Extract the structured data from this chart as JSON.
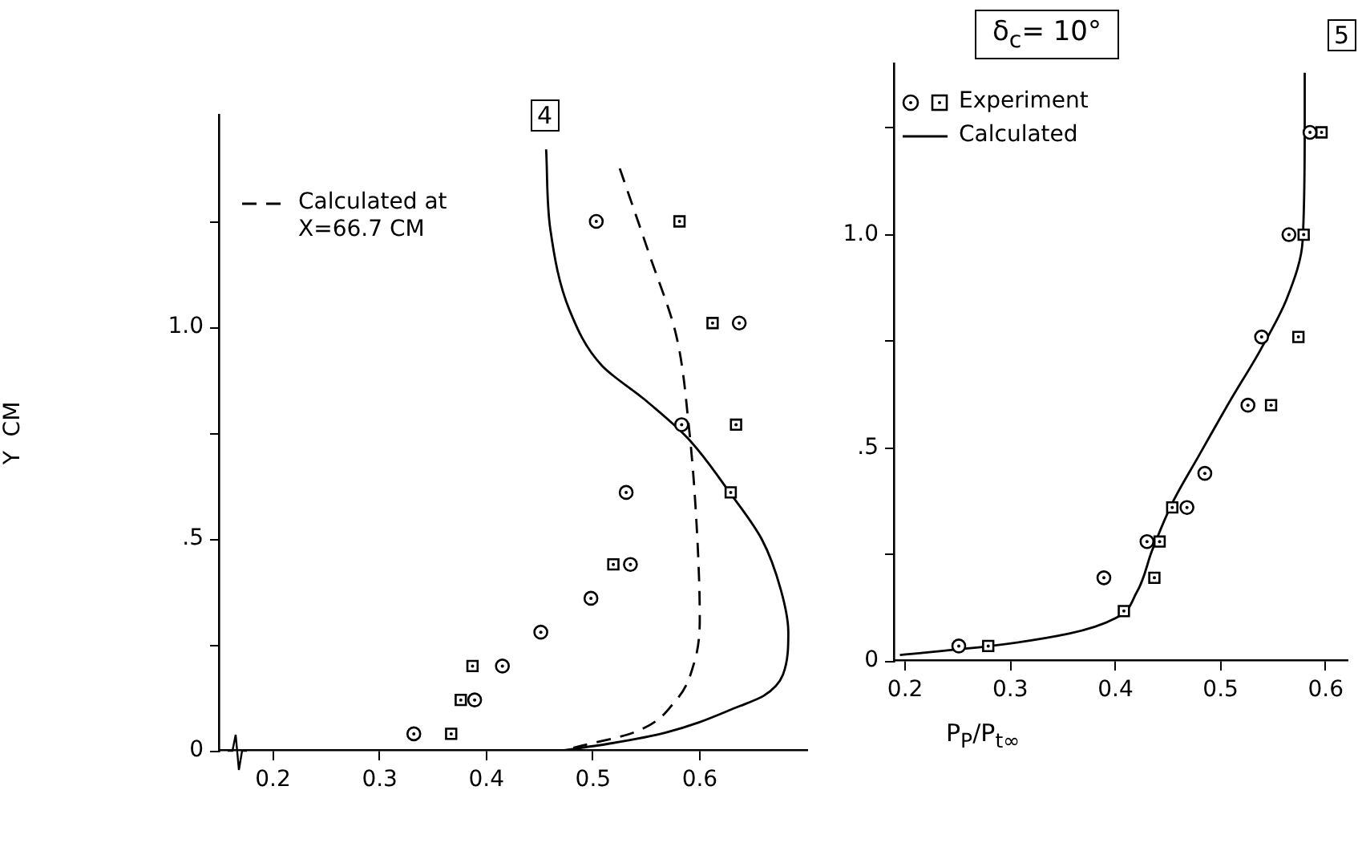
{
  "chart_data": [
    {
      "type": "scatter",
      "title": "4",
      "ylabel": "Y  CM",
      "legend": "top left",
      "grid": false,
      "xlim": [
        0.15,
        0.7
      ],
      "xticks": [
        0.2,
        0.3,
        0.4,
        0.5,
        0.6
      ],
      "ylim": [
        0,
        1.5
      ],
      "yticks": [
        0,
        {
          "value": 0.25,
          "label": null
        },
        {
          "value": 0.5,
          "label": ".5"
        },
        {
          "value": 0.75,
          "label": null
        },
        {
          "value": 1,
          "label": "1.0"
        },
        {
          "value": 1.25,
          "label": null
        }
      ],
      "series": [
        {
          "type": "scatter",
          "marker": "circle",
          "color": "#000000",
          "x": [
            0.503,
            0.637,
            0.583,
            0.531,
            0.535,
            0.498,
            0.451,
            0.415,
            0.389,
            0.332
          ],
          "values": [
            1.25,
            1.01,
            0.77,
            0.61,
            0.44,
            0.36,
            0.28,
            0.2,
            0.12,
            0.04
          ]
        },
        {
          "type": "scatter",
          "marker": "square",
          "color": "#000000",
          "x": [
            0.581,
            0.612,
            0.634,
            0.629,
            0.519,
            0.387,
            0.376,
            0.367
          ],
          "values": [
            1.25,
            1.01,
            0.77,
            0.61,
            0.44,
            0.2,
            0.12,
            0.04
          ]
        },
        {
          "type": "line",
          "marker": "none",
          "line_style": "solid",
          "color": "#000000",
          "x": [
            0.456,
            0.46,
            0.478,
            0.508,
            0.548,
            0.588,
            0.628,
            0.658,
            0.676,
            0.683,
            0.678,
            0.66,
            0.638,
            0.568,
            0.518,
            0.47
          ],
          "values": [
            1.42,
            1.23,
            1.04,
            0.91,
            0.83,
            0.74,
            0.61,
            0.5,
            0.38,
            0.28,
            0.18,
            0.13,
            0.106,
            0.043,
            0.018,
            0
          ]
        },
        {
          "type": "line",
          "name": "Calculated at X=66.7 CM",
          "marker": "none",
          "line_style": "dashed",
          "color": "#000000",
          "x": [
            0.525,
            0.553,
            0.578,
            0.59,
            0.597,
            0.6,
            0.595,
            0.578,
            0.538,
            0.488,
            0.47
          ],
          "values": [
            1.375,
            1.17,
            0.98,
            0.76,
            0.535,
            0.31,
            0.21,
            0.12,
            0.043,
            0.011,
            0
          ]
        }
      ]
    },
    {
      "type": "scatter",
      "title": "5",
      "xlabel": "P$_{P}$/P$_{t∞}$",
      "annotations": [
        "δ$_{c}$= 10°"
      ],
      "legend": "top left",
      "grid": false,
      "xlim": [
        0.19,
        0.62
      ],
      "xticks": [
        0.2,
        0.3,
        0.4,
        0.5,
        0.6
      ],
      "ylim": [
        0,
        1.4
      ],
      "yticks": [
        0,
        {
          "value": 0.25,
          "label": null
        },
        {
          "value": 0.5,
          "label": ".5"
        },
        {
          "value": 0.75,
          "label": null
        },
        {
          "value": 1,
          "label": "1.0"
        },
        {
          "value": 1.25,
          "label": null
        }
      ],
      "series": [
        {
          "type": "scatter",
          "marker": "circle",
          "color": "#000000",
          "x": [
            0.585,
            0.565,
            0.539,
            0.526,
            0.485,
            0.468,
            0.43,
            0.389,
            0.251
          ],
          "values": [
            1.24,
            1,
            0.76,
            0.6,
            0.44,
            0.36,
            0.28,
            0.195,
            0.035
          ]
        },
        {
          "type": "scatter",
          "name": "Experiment",
          "marker": "square",
          "color": "#000000",
          "x": [
            0.596,
            0.579,
            0.574,
            0.548,
            0.454,
            0.442,
            0.437,
            0.408,
            0.279
          ],
          "values": [
            1.24,
            1,
            0.76,
            0.6,
            0.36,
            0.28,
            0.195,
            0.117,
            0.035
          ]
        },
        {
          "type": "line",
          "name": "Calculated",
          "marker": "none",
          "line_style": "solid",
          "color": "#000000",
          "x": [
            0.58,
            0.58,
            0.578,
            0.563,
            0.538,
            0.509,
            0.479,
            0.454,
            0.435,
            0.42,
            0.4,
            0.356,
            0.281,
            0.195
          ],
          "values": [
            1.38,
            1.25,
            0.985,
            0.85,
            0.73,
            0.61,
            0.48,
            0.37,
            0.26,
            0.16,
            0.1,
            0.064,
            0.035,
            0.014
          ]
        }
      ]
    }
  ]
}
